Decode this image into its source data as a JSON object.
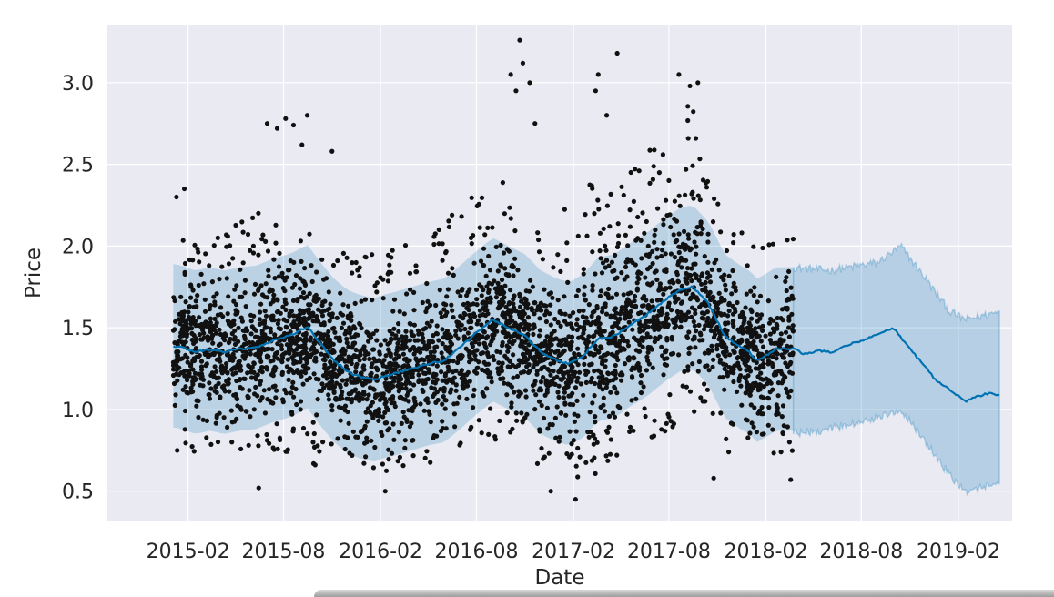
{
  "chart_data": {
    "type": "scatter",
    "xlabel": "Date",
    "ylabel": "Price",
    "xlim": [
      "2014-09-01",
      "2019-05-14"
    ],
    "ylim": [
      0.32,
      3.35
    ],
    "x_ticks": [
      "2015-02",
      "2015-08",
      "2016-02",
      "2016-08",
      "2017-02",
      "2017-08",
      "2018-02",
      "2018-08",
      "2019-02"
    ],
    "y_ticks": [
      0.5,
      1.0,
      1.5,
      2.0,
      2.5,
      3.0
    ],
    "grid": true,
    "observed_range": [
      "2015-01-04",
      "2018-03-25"
    ],
    "series": [
      {
        "type": "scatter",
        "color": "#111111",
        "description_points": "dense daily observations, approx. 0.45-3.25",
        "band_low": [
          [
            "2015-01-04",
            0.72
          ],
          [
            "2015-04-01",
            0.75
          ],
          [
            "2015-07-01",
            0.72
          ],
          [
            "2015-10-01",
            0.65
          ],
          [
            "2016-01-15",
            0.58
          ],
          [
            "2016-05-01",
            0.6
          ],
          [
            "2016-08-01",
            0.75
          ],
          [
            "2016-10-01",
            0.82
          ],
          [
            "2016-12-15",
            0.6
          ],
          [
            "2017-02-01",
            0.48
          ],
          [
            "2017-05-01",
            0.7
          ],
          [
            "2017-08-01",
            0.85
          ],
          [
            "2017-09-15",
            1.0
          ],
          [
            "2017-10-15",
            0.7
          ],
          [
            "2017-12-01",
            0.65
          ],
          [
            "2018-03-25",
            0.6
          ]
        ],
        "band_high": [
          [
            "2015-01-04",
            2.0
          ],
          [
            "2015-04-01",
            2.2
          ],
          [
            "2015-07-01",
            2.25
          ],
          [
            "2015-10-01",
            2.05
          ],
          [
            "2016-01-15",
            1.95
          ],
          [
            "2016-05-01",
            2.05
          ],
          [
            "2016-08-01",
            2.35
          ],
          [
            "2016-10-01",
            2.45
          ],
          [
            "2016-12-15",
            2.0
          ],
          [
            "2017-02-01",
            2.35
          ],
          [
            "2017-05-01",
            2.45
          ],
          [
            "2017-08-01",
            2.7
          ],
          [
            "2017-09-15",
            2.9
          ],
          [
            "2017-10-15",
            2.4
          ],
          [
            "2017-12-01",
            2.1
          ],
          [
            "2018-03-25",
            2.05
          ]
        ],
        "outliers": [
          [
            "2015-01-10",
            2.3
          ],
          [
            "2015-01-25",
            2.35
          ],
          [
            "2015-07-01",
            2.75
          ],
          [
            "2015-07-20",
            2.72
          ],
          [
            "2015-08-05",
            2.78
          ],
          [
            "2015-08-20",
            2.74
          ],
          [
            "2015-09-15",
            2.8
          ],
          [
            "2015-09-05",
            2.62
          ],
          [
            "2015-11-01",
            2.58
          ],
          [
            "2016-10-05",
            3.05
          ],
          [
            "2016-10-15",
            2.95
          ],
          [
            "2016-10-22",
            3.26
          ],
          [
            "2016-10-28",
            3.12
          ],
          [
            "2016-11-10",
            3.0
          ],
          [
            "2016-11-20",
            2.75
          ],
          [
            "2017-03-15",
            2.95
          ],
          [
            "2017-03-20",
            3.05
          ],
          [
            "2017-04-05",
            2.8
          ],
          [
            "2017-04-25",
            3.18
          ],
          [
            "2017-08-20",
            3.05
          ],
          [
            "2017-09-10",
            2.98
          ],
          [
            "2017-09-25",
            3.0
          ],
          [
            "2017-02-05",
            0.45
          ],
          [
            "2016-12-20",
            0.5
          ],
          [
            "2016-02-10",
            0.5
          ],
          [
            "2015-06-15",
            0.52
          ],
          [
            "2017-10-25",
            0.58
          ],
          [
            "2018-03-20",
            0.57
          ]
        ]
      },
      {
        "name": "",
        "type": "line",
        "color": "#0072B2",
        "x": [
          "2015-01-04",
          "2015-01-20",
          "2015-02-15",
          "2015-03-15",
          "2015-04-10",
          "2015-05-10",
          "2015-06-10",
          "2015-07-10",
          "2015-08-10",
          "2015-08-25",
          "2015-09-15",
          "2015-10-10",
          "2015-11-05",
          "2015-12-01",
          "2015-12-25",
          "2016-01-20",
          "2016-02-05",
          "2016-03-01",
          "2016-04-01",
          "2016-05-01",
          "2016-06-01",
          "2016-07-01",
          "2016-08-01",
          "2016-09-01",
          "2016-10-01",
          "2016-11-01",
          "2016-12-01",
          "2017-01-01",
          "2017-01-25",
          "2017-02-20",
          "2017-03-20",
          "2017-04-20",
          "2017-05-20",
          "2017-06-20",
          "2017-07-20",
          "2017-08-20",
          "2017-09-15",
          "2017-10-15",
          "2017-11-15",
          "2017-12-15",
          "2018-01-01",
          "2018-01-15",
          "2018-02-01",
          "2018-02-20",
          "2018-03-25",
          "2018-04-15",
          "2018-05-10",
          "2018-06-10",
          "2018-07-10",
          "2018-08-10",
          "2018-09-10",
          "2018-10-01",
          "2018-10-25",
          "2018-11-20",
          "2018-12-20",
          "2019-01-20",
          "2019-02-15",
          "2019-03-10",
          "2019-04-01",
          "2019-04-20"
        ],
        "y": [
          1.39,
          1.38,
          1.35,
          1.37,
          1.35,
          1.37,
          1.38,
          1.42,
          1.45,
          1.47,
          1.51,
          1.4,
          1.3,
          1.23,
          1.2,
          1.18,
          1.2,
          1.22,
          1.25,
          1.28,
          1.3,
          1.38,
          1.47,
          1.55,
          1.5,
          1.45,
          1.35,
          1.3,
          1.28,
          1.33,
          1.43,
          1.45,
          1.52,
          1.58,
          1.66,
          1.73,
          1.75,
          1.65,
          1.45,
          1.38,
          1.35,
          1.3,
          1.33,
          1.37,
          1.37,
          1.34,
          1.36,
          1.35,
          1.4,
          1.43,
          1.47,
          1.5,
          1.4,
          1.3,
          1.18,
          1.11,
          1.05,
          1.08,
          1.1,
          1.09
        ]
      },
      {
        "type": "area",
        "color": "#0072B2",
        "x": [
          "2018-03-25",
          "2018-06-01",
          "2018-09-01",
          "2018-10-15",
          "2018-12-01",
          "2019-01-15",
          "2019-02-15",
          "2019-04-20"
        ],
        "lower": [
          0.85,
          0.88,
          0.95,
          1.0,
          0.8,
          0.6,
          0.5,
          0.55
        ],
        "upper": [
          1.87,
          1.85,
          1.9,
          2.0,
          1.8,
          1.6,
          1.55,
          1.6
        ]
      }
    ]
  }
}
